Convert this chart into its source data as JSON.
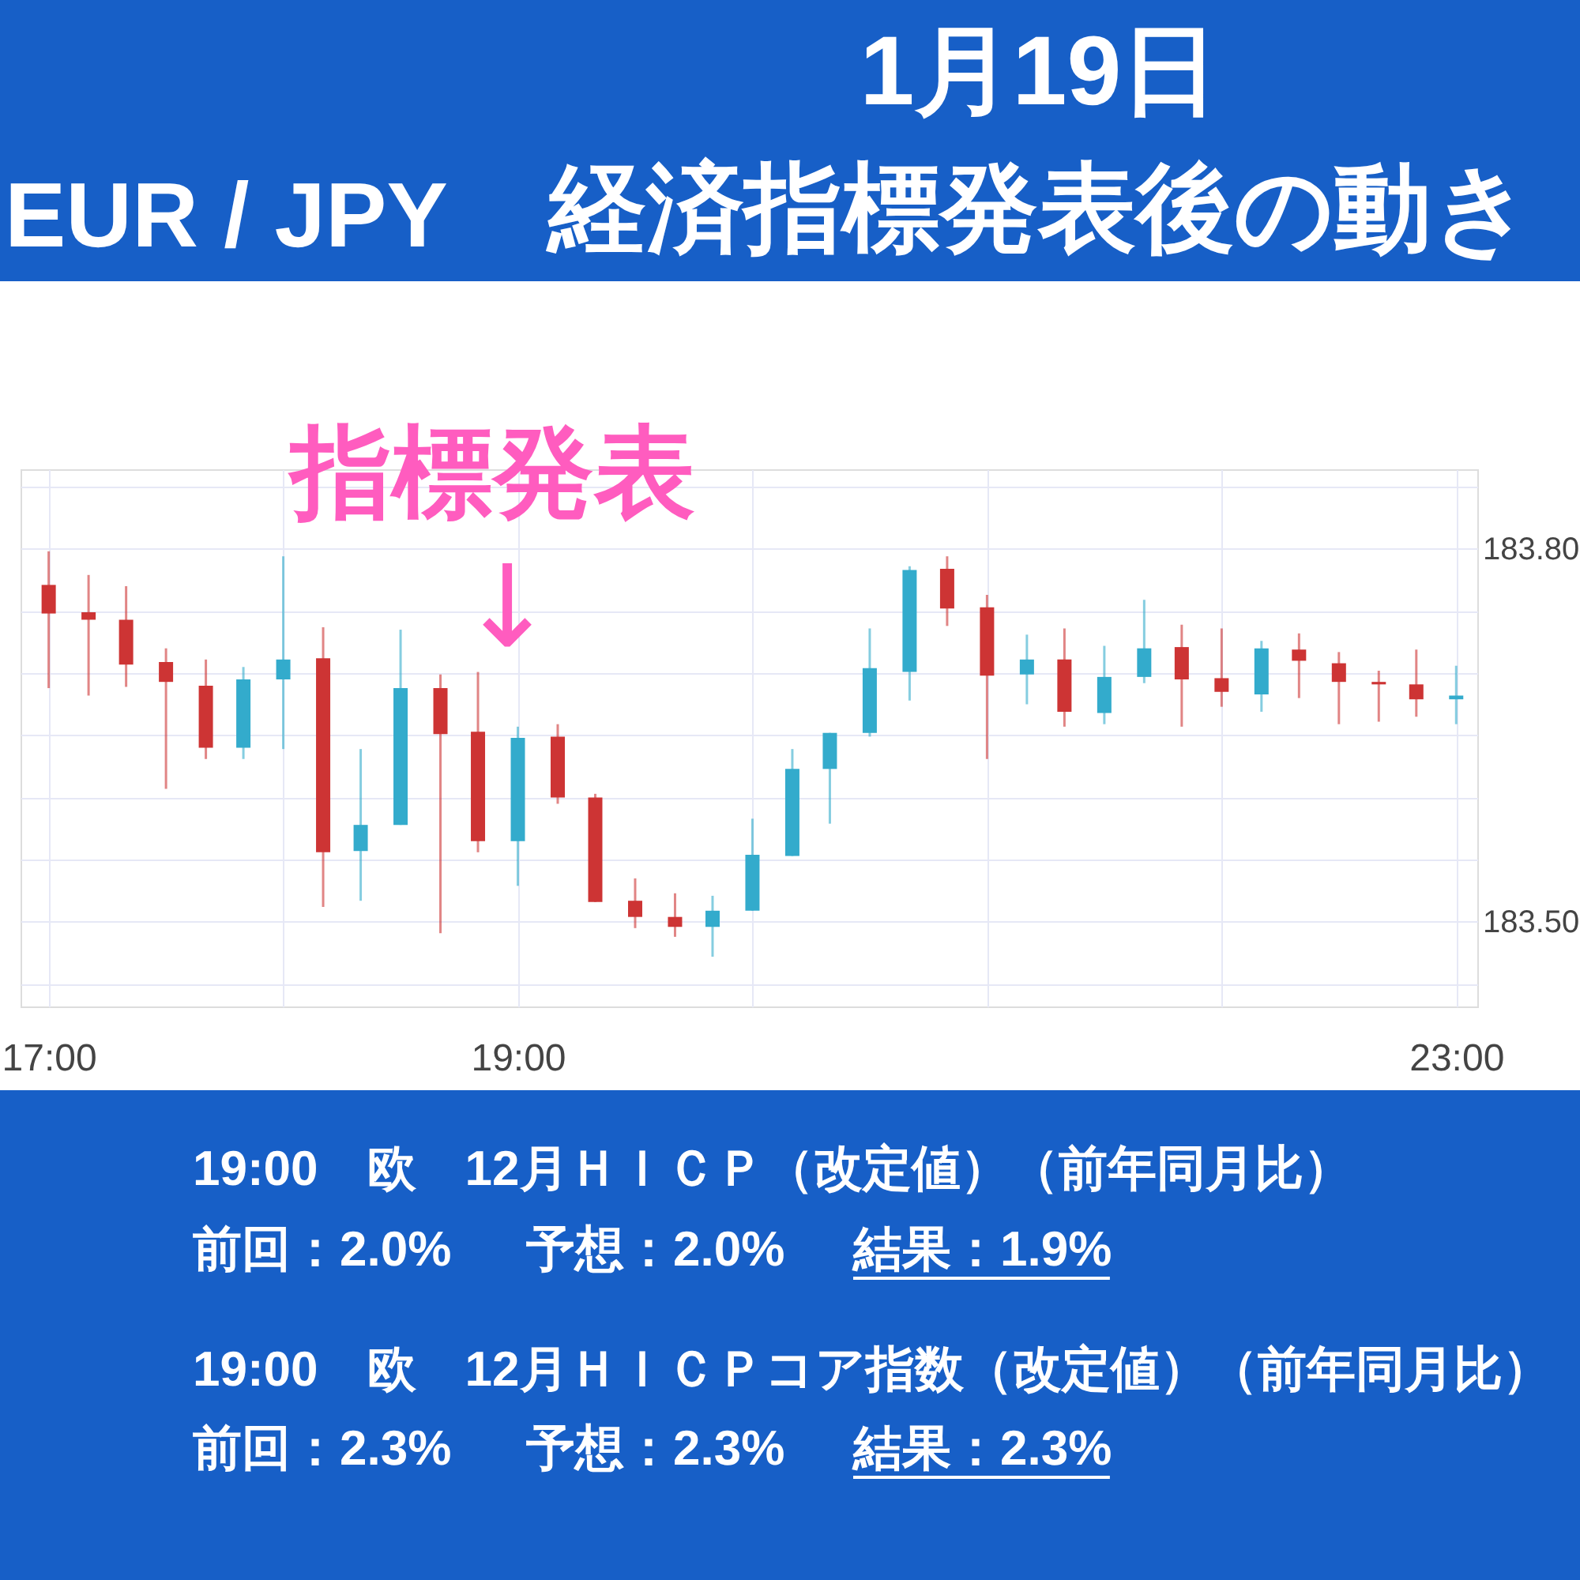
{
  "chart_data": {
    "type": "candlestick",
    "title": "1月19日",
    "subtitle": "経済指標発表後の動き",
    "x": [
      17,
      17.17,
      17.33,
      17.5,
      17.67,
      17.83,
      18,
      18.17,
      18.33,
      18.5,
      18.67,
      18.83,
      19,
      19.17,
      19.33,
      19.5,
      19.67,
      19.83,
      20,
      20.17,
      20.33,
      20.5,
      20.67,
      20.83,
      21,
      21.17,
      21.33,
      21.5,
      21.67,
      21.83,
      22,
      22.17,
      22.33,
      22.5,
      22.67,
      22.83,
      23
    ],
    "ohlc": [
      [
        183.771,
        183.798,
        183.688,
        183.748
      ],
      [
        183.749,
        183.779,
        183.682,
        183.743
      ],
      [
        183.743,
        183.77,
        183.689,
        183.707
      ],
      [
        183.709,
        183.72,
        183.607,
        183.693
      ],
      [
        183.69,
        183.711,
        183.631,
        183.64
      ],
      [
        183.64,
        183.705,
        183.631,
        183.695
      ],
      [
        183.695,
        183.794,
        183.639,
        183.711
      ],
      [
        183.712,
        183.737,
        183.512,
        183.556
      ],
      [
        183.557,
        183.639,
        183.517,
        183.578
      ],
      [
        183.578,
        183.735,
        183.578,
        183.688
      ],
      [
        183.688,
        183.699,
        183.491,
        183.651
      ],
      [
        183.653,
        183.701,
        183.556,
        183.565
      ],
      [
        183.565,
        183.657,
        183.529,
        183.648
      ],
      [
        183.649,
        183.659,
        183.595,
        183.6
      ],
      [
        183.6,
        183.603,
        183.516,
        183.516
      ],
      [
        183.517,
        183.535,
        183.495,
        183.504
      ],
      [
        183.504,
        183.523,
        183.488,
        183.496
      ],
      [
        183.496,
        183.521,
        183.472,
        183.509
      ],
      [
        183.509,
        183.583,
        183.509,
        183.554
      ],
      [
        183.553,
        183.639,
        183.553,
        183.623
      ],
      [
        183.623,
        183.652,
        183.579,
        183.652
      ],
      [
        183.652,
        183.736,
        183.649,
        183.704
      ],
      [
        183.701,
        183.786,
        183.678,
        183.783
      ],
      [
        183.784,
        183.794,
        183.738,
        183.752
      ],
      [
        183.753,
        183.763,
        183.631,
        183.698
      ],
      [
        183.699,
        183.731,
        183.675,
        183.711
      ],
      [
        183.711,
        183.736,
        183.657,
        183.669
      ],
      [
        183.668,
        183.722,
        183.659,
        183.697
      ],
      [
        183.697,
        183.759,
        183.692,
        183.72
      ],
      [
        183.721,
        183.739,
        183.657,
        183.695
      ],
      [
        183.696,
        183.736,
        183.673,
        183.685
      ],
      [
        183.683,
        183.726,
        183.669,
        183.72
      ],
      [
        183.719,
        183.732,
        183.68,
        183.71
      ],
      [
        183.708,
        183.717,
        183.659,
        183.693
      ],
      [
        183.693,
        183.702,
        183.661,
        183.691
      ],
      [
        183.691,
        183.719,
        183.665,
        183.679
      ],
      [
        183.679,
        183.706,
        183.659,
        183.682
      ]
    ],
    "colors": [
      "#cd3434",
      "#cd3434",
      "#cd3434",
      "#cd3434",
      "#cd3434",
      "#33abcc",
      "#33abcc",
      "#cd3434",
      "#33abcc",
      "#33abcc",
      "#cd3434",
      "#cd3434",
      "#33abcc",
      "#cd3434",
      "#cd3434",
      "#cd3434",
      "#cd3434",
      "#33abcc",
      "#33abcc",
      "#33abcc",
      "#33abcc",
      "#33abcc",
      "#33abcc",
      "#cd3434",
      "#cd3434",
      "#33abcc",
      "#cd3434",
      "#33abcc",
      "#33abcc",
      "#cd3434",
      "#cd3434",
      "#33abcc",
      "#cd3434",
      "#cd3434",
      "#cd3434",
      "#cd3434",
      "#33abcc"
    ],
    "xlim": [
      16.88,
      23.09
    ],
    "ylim": [
      183.432,
      183.864
    ],
    "xticks": [
      {
        "value": 17,
        "label": "17:00"
      },
      {
        "value": 18,
        "label": null
      },
      {
        "value": 19,
        "label": "19:00"
      },
      {
        "value": 20,
        "label": null
      },
      {
        "value": 21,
        "label": null
      },
      {
        "value": 22,
        "label": null
      },
      {
        "value": 23,
        "label": "23:00"
      }
    ],
    "yticks": [
      {
        "value": 183.45,
        "label": null
      },
      {
        "value": 183.5,
        "label": "183.50"
      },
      {
        "value": 183.55,
        "label": null
      },
      {
        "value": 183.6,
        "label": null
      },
      {
        "value": 183.65,
        "label": null
      },
      {
        "value": 183.7,
        "label": null
      },
      {
        "value": 183.75,
        "label": null
      },
      {
        "value": 183.8,
        "label": "183.80"
      },
      {
        "value": 183.85,
        "label": null
      }
    ],
    "grid": true,
    "annotations": [
      "EUR / JPY",
      "指標発表",
      "↓",
      "19:00　欧　12月ＨＩＣＰ（改定値）（前年同月比）",
      "前回：2.0%",
      "予想：2.0%",
      "結果：1.9%",
      "19:00　欧　12月ＨＩＣＰコア指数（改定値）（前年同月比）",
      "前回：2.3%",
      "予想：2.3%",
      "結果：2.3%"
    ]
  }
}
